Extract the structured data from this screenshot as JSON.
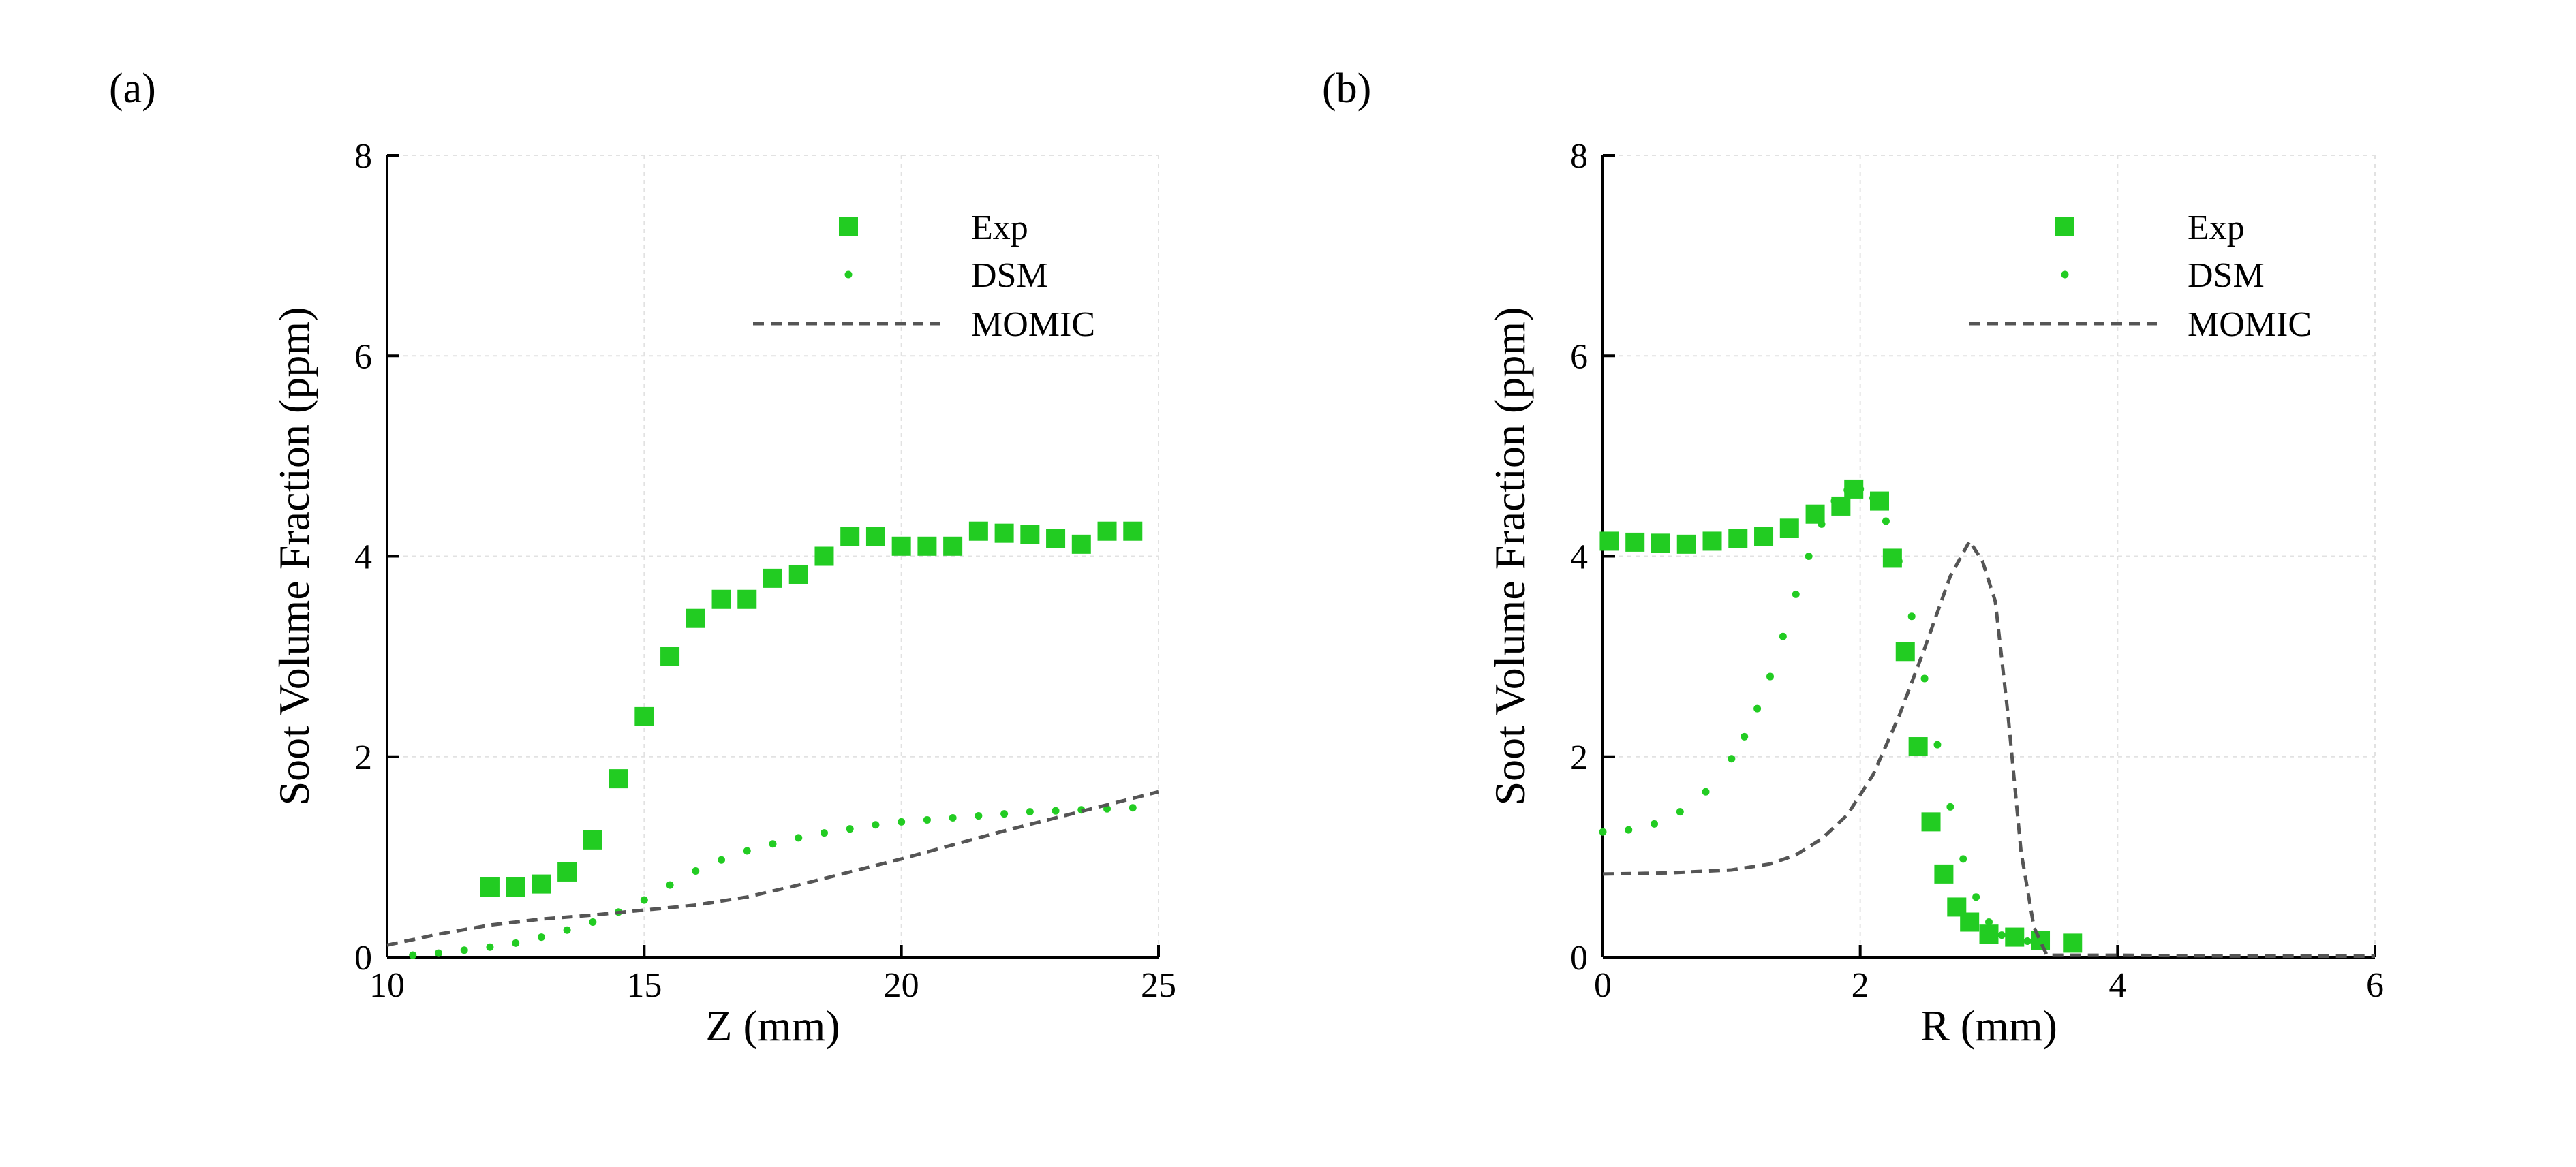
{
  "panels": [
    {
      "label": "(a)",
      "chart_data": {
        "type": "scatter",
        "title": "",
        "xlabel": "Z (mm)",
        "ylabel": "Soot Volume Fraction (ppm)",
        "xlim": [
          10,
          25
        ],
        "ylim": [
          0,
          8
        ],
        "xticks": [
          10,
          15,
          20,
          25
        ],
        "yticks": [
          0,
          2,
          4,
          6,
          8
        ],
        "grid": true,
        "legend_position": "top-right",
        "series": [
          {
            "name": "Exp",
            "style": "square-marker",
            "color": "#22cc22",
            "x": [
              12.0,
              12.5,
              13.0,
              13.5,
              14.0,
              14.5,
              15.0,
              15.5,
              16.0,
              16.5,
              17.0,
              17.5,
              18.0,
              18.5,
              19.0,
              19.5,
              20.0,
              20.5,
              21.0,
              21.5,
              22.0,
              22.5,
              23.0,
              23.5,
              24.0,
              24.5
            ],
            "y": [
              0.7,
              0.7,
              0.73,
              0.85,
              1.17,
              1.78,
              2.4,
              3.0,
              3.38,
              3.57,
              3.57,
              3.78,
              3.82,
              4.0,
              4.2,
              4.2,
              4.1,
              4.1,
              4.1,
              4.25,
              4.23,
              4.22,
              4.18,
              4.12,
              4.25,
              4.25
            ]
          },
          {
            "name": "DSM",
            "style": "dot-marker",
            "color": "#22cc22",
            "x": [
              10.5,
              11.0,
              11.5,
              12.0,
              12.5,
              13.0,
              13.5,
              14.0,
              14.5,
              15.0,
              15.5,
              16.0,
              16.5,
              17.0,
              17.5,
              18.0,
              18.5,
              19.0,
              19.5,
              20.0,
              20.5,
              21.0,
              21.5,
              22.0,
              22.5,
              23.0,
              23.5,
              24.0,
              24.5
            ],
            "y": [
              0.02,
              0.04,
              0.07,
              0.1,
              0.14,
              0.2,
              0.27,
              0.35,
              0.45,
              0.57,
              0.72,
              0.86,
              0.97,
              1.06,
              1.13,
              1.19,
              1.24,
              1.28,
              1.32,
              1.35,
              1.37,
              1.39,
              1.41,
              1.43,
              1.45,
              1.46,
              1.47,
              1.48,
              1.49
            ]
          },
          {
            "name": "MOMIC",
            "style": "dashed-line",
            "color": "#555555",
            "x": [
              10.0,
              11.0,
              12.0,
              13.0,
              14.0,
              15.0,
              16.0,
              17.0,
              18.0,
              19.0,
              20.0,
              21.0,
              22.0,
              23.0,
              24.0,
              25.0
            ],
            "y": [
              0.12,
              0.23,
              0.32,
              0.38,
              0.42,
              0.47,
              0.52,
              0.6,
              0.72,
              0.85,
              0.98,
              1.12,
              1.26,
              1.39,
              1.52,
              1.65
            ]
          }
        ]
      }
    },
    {
      "label": "(b)",
      "chart_data": {
        "type": "scatter",
        "title": "",
        "xlabel": "R (mm)",
        "ylabel": "Soot Volume Fraction (ppm)",
        "xlim": [
          0,
          6
        ],
        "ylim": [
          0,
          8
        ],
        "xticks": [
          0,
          2,
          4,
          6
        ],
        "yticks": [
          0,
          2,
          4,
          6,
          8
        ],
        "grid": true,
        "legend_position": "top-right",
        "series": [
          {
            "name": "Exp",
            "style": "square-marker",
            "color": "#22cc22",
            "x": [
              0.05,
              0.25,
              0.45,
              0.65,
              0.85,
              1.05,
              1.25,
              1.45,
              1.65,
              1.85,
              1.95,
              2.15,
              2.25,
              2.35,
              2.45,
              2.55,
              2.65,
              2.75,
              2.85,
              3.0,
              3.2,
              3.4,
              3.65
            ],
            "y": [
              4.15,
              4.14,
              4.13,
              4.12,
              4.15,
              4.18,
              4.2,
              4.28,
              4.42,
              4.5,
              4.67,
              4.55,
              3.98,
              3.05,
              2.1,
              1.35,
              0.83,
              0.5,
              0.35,
              0.23,
              0.2,
              0.17,
              0.14
            ]
          },
          {
            "name": "DSM",
            "style": "dot-marker",
            "color": "#22cc22",
            "x": [
              0.0,
              0.2,
              0.4,
              0.6,
              0.8,
              1.0,
              1.1,
              1.2,
              1.3,
              1.4,
              1.5,
              1.6,
              1.7,
              1.8,
              1.9,
              2.0,
              2.1,
              2.2,
              2.3,
              2.4,
              2.5,
              2.6,
              2.7,
              2.8,
              2.9,
              3.0,
              3.1,
              3.2,
              3.3,
              3.4
            ],
            "y": [
              1.25,
              1.27,
              1.33,
              1.45,
              1.65,
              1.98,
              2.2,
              2.48,
              2.8,
              3.2,
              3.62,
              4.0,
              4.32,
              4.55,
              4.66,
              4.67,
              4.58,
              4.35,
              3.95,
              3.4,
              2.78,
              2.12,
              1.5,
              0.98,
              0.6,
              0.35,
              0.22,
              0.17,
              0.16,
              0.15
            ]
          },
          {
            "name": "MOMIC",
            "style": "dashed-line",
            "color": "#555555",
            "x": [
              0.0,
              0.5,
              1.0,
              1.3,
              1.5,
              1.7,
              1.9,
              2.1,
              2.3,
              2.5,
              2.7,
              2.85,
              2.95,
              3.05,
              3.15,
              3.25,
              3.35,
              3.45,
              4.0,
              5.0,
              6.0
            ],
            "y": [
              0.83,
              0.84,
              0.87,
              0.93,
              1.02,
              1.18,
              1.42,
              1.82,
              2.4,
              3.08,
              3.8,
              4.15,
              3.95,
              3.55,
              2.4,
              1.05,
              0.3,
              0.02,
              0.02,
              0.01,
              0.01
            ]
          }
        ]
      }
    }
  ]
}
